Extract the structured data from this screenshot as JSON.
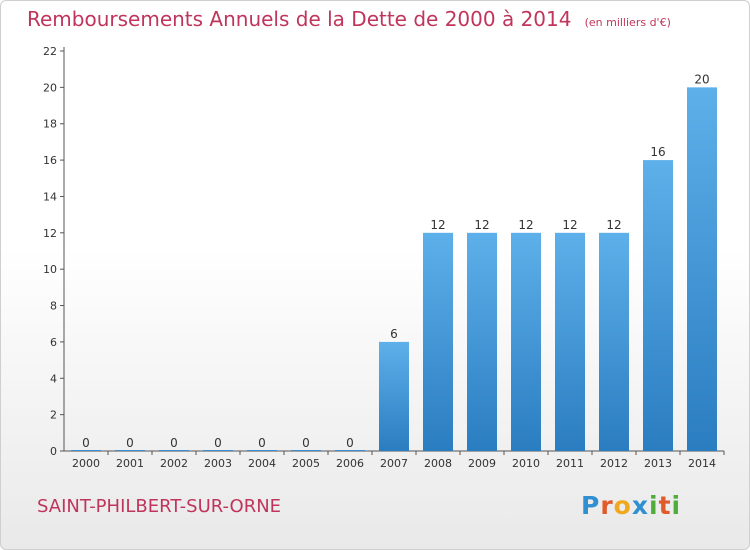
{
  "chart_data": {
    "type": "bar",
    "title": "Remboursements Annuels de la Dette de 2000 à 2014",
    "subtitle": "(en milliers d'€)",
    "xlabel": "",
    "ylabel": "",
    "categories": [
      "2000",
      "2001",
      "2002",
      "2003",
      "2004",
      "2005",
      "2006",
      "2007",
      "2008",
      "2009",
      "2010",
      "2011",
      "2012",
      "2013",
      "2014"
    ],
    "values": [
      0,
      0,
      0,
      0,
      0,
      0,
      0,
      6,
      12,
      12,
      12,
      12,
      12,
      16,
      20
    ],
    "ylim": [
      0,
      22
    ],
    "yticks": [
      0,
      2,
      4,
      6,
      8,
      10,
      12,
      14,
      16,
      18,
      20,
      22
    ],
    "grid": false,
    "bar_color": "#3a8fd4"
  },
  "footer": {
    "commune": "SAINT-PHILBERT-SUR-ORNE"
  },
  "logo": {
    "letters": [
      {
        "char": "P",
        "color": "#2f8fd0"
      },
      {
        "char": "r",
        "color": "#e05a2a"
      },
      {
        "char": "o",
        "color": "#f0a81e"
      },
      {
        "char": "x",
        "color": "#2f8fd0"
      },
      {
        "char": "i",
        "color": "#4fae3a"
      },
      {
        "char": "t",
        "color": "#e05a2a"
      },
      {
        "char": "i",
        "color": "#4fae3a"
      }
    ]
  }
}
